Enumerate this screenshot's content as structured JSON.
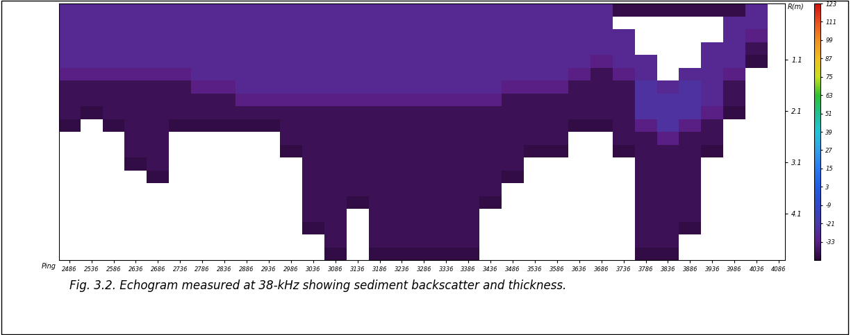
{
  "chart_data": {
    "type": "heatmap",
    "caption": "Fig. 3.2. Echogram measured at 38-kHz showing sediment backscatter and thickness.",
    "x_label": "Ping",
    "y_label": "R(m)",
    "x": [
      2486,
      2536,
      2586,
      2636,
      2686,
      2736,
      2786,
      2836,
      2886,
      2936,
      2986,
      3036,
      3086,
      3136,
      3186,
      3236,
      3286,
      3336,
      3386,
      3436,
      3486,
      3536,
      3586,
      3636,
      3686,
      3736,
      3786,
      3836,
      3886,
      3936,
      3986,
      4036
    ],
    "y": [
      0.125,
      0.375,
      0.625,
      0.875,
      1.125,
      1.375,
      1.625,
      1.875,
      2.125,
      2.375,
      2.625,
      2.875,
      3.125,
      3.375,
      3.625,
      3.875,
      4.125,
      4.375,
      4.625,
      4.875
    ],
    "cells": [
      [
        -29,
        -29,
        -29,
        -29,
        -29,
        -29,
        -29,
        -29,
        -29,
        -29,
        -29,
        -29,
        -29,
        -29,
        -29,
        -29,
        -29,
        -29,
        -29,
        -29,
        -29,
        -29,
        -29,
        -29,
        -29,
        -42,
        -42,
        -42,
        -42,
        -42,
        -42,
        -29
      ],
      [
        -29,
        -29,
        -29,
        -29,
        -29,
        -29,
        -29,
        -29,
        -29,
        -29,
        -29,
        -29,
        -29,
        -29,
        -29,
        -29,
        -29,
        -29,
        -29,
        -29,
        -29,
        -29,
        -29,
        -29,
        -29,
        null,
        null,
        null,
        null,
        null,
        -29,
        -29
      ],
      [
        -29,
        -29,
        -29,
        -29,
        -29,
        -29,
        -29,
        -29,
        -29,
        -29,
        -29,
        -29,
        -29,
        -29,
        -29,
        -29,
        -29,
        -29,
        -29,
        -29,
        -29,
        -29,
        -29,
        -29,
        -29,
        -29,
        null,
        null,
        null,
        null,
        -29,
        -33
      ],
      [
        -29,
        -29,
        -29,
        -29,
        -29,
        -29,
        -29,
        -29,
        -29,
        -29,
        -29,
        -29,
        -29,
        -29,
        -29,
        -29,
        -29,
        -29,
        -29,
        -29,
        -29,
        -29,
        -29,
        -29,
        -29,
        -29,
        null,
        null,
        null,
        -29,
        -29,
        -40
      ],
      [
        -29,
        -29,
        -29,
        -29,
        -29,
        -29,
        -29,
        -29,
        -29,
        -29,
        -29,
        -29,
        -29,
        -29,
        -29,
        -29,
        -29,
        -29,
        -29,
        -29,
        -29,
        -29,
        -29,
        -29,
        -33,
        -29,
        -29,
        null,
        null,
        -29,
        -29,
        -43
      ],
      [
        -33,
        -33,
        -33,
        -33,
        -33,
        -33,
        -29,
        -29,
        -29,
        -29,
        -29,
        -29,
        -29,
        -29,
        -29,
        -29,
        -29,
        -29,
        -29,
        -29,
        -29,
        -29,
        -29,
        -33,
        -40,
        -33,
        -29,
        null,
        -29,
        -29,
        -33,
        null
      ],
      [
        -40,
        -40,
        -40,
        -40,
        -40,
        -40,
        -33,
        -33,
        -29,
        -29,
        -29,
        -29,
        -29,
        -29,
        -29,
        -29,
        -29,
        -29,
        -29,
        -29,
        -33,
        -33,
        -33,
        -40,
        -40,
        -40,
        -24,
        -29,
        -24,
        -29,
        -40,
        null
      ],
      [
        -40,
        -40,
        -40,
        -40,
        -40,
        -40,
        -40,
        -40,
        -33,
        -33,
        -33,
        -33,
        -33,
        -33,
        -33,
        -33,
        -33,
        -33,
        -33,
        -33,
        -40,
        -40,
        -40,
        -40,
        -40,
        -40,
        -24,
        -24,
        -24,
        -29,
        -40,
        null
      ],
      [
        -40,
        -43,
        -40,
        -40,
        -40,
        -40,
        -40,
        -40,
        -40,
        -40,
        -40,
        -40,
        -40,
        -40,
        -40,
        -40,
        -40,
        -40,
        -40,
        -40,
        -40,
        -40,
        -40,
        -40,
        -40,
        -40,
        -24,
        -24,
        -24,
        -33,
        -43,
        null
      ],
      [
        -43,
        null,
        -43,
        -40,
        -40,
        -43,
        -43,
        -43,
        -43,
        -43,
        -40,
        -40,
        -40,
        -40,
        -40,
        -40,
        -40,
        -40,
        -40,
        -40,
        -40,
        -40,
        -40,
        -43,
        -43,
        -40,
        -33,
        -24,
        -33,
        -40,
        null,
        null
      ],
      [
        null,
        null,
        null,
        -40,
        -40,
        null,
        null,
        null,
        null,
        null,
        -40,
        -40,
        -40,
        -40,
        -40,
        -40,
        -40,
        -40,
        -40,
        -40,
        -40,
        -40,
        -40,
        null,
        null,
        -40,
        -40,
        -33,
        -40,
        -40,
        null,
        null
      ],
      [
        null,
        null,
        null,
        -40,
        -40,
        null,
        null,
        null,
        null,
        null,
        -43,
        -40,
        -40,
        -40,
        -40,
        -40,
        -40,
        -40,
        -40,
        -40,
        -40,
        -43,
        -43,
        null,
        null,
        -43,
        -40,
        -40,
        -40,
        -43,
        null,
        null
      ],
      [
        null,
        null,
        null,
        -43,
        -40,
        null,
        null,
        null,
        null,
        null,
        null,
        -40,
        -40,
        -40,
        -40,
        -40,
        -40,
        -40,
        -40,
        -40,
        -40,
        null,
        null,
        null,
        null,
        null,
        -40,
        -40,
        -40,
        null,
        null,
        null
      ],
      [
        null,
        null,
        null,
        null,
        -43,
        null,
        null,
        null,
        null,
        null,
        null,
        -40,
        -40,
        -40,
        -40,
        -40,
        -40,
        -40,
        -40,
        -40,
        -43,
        null,
        null,
        null,
        null,
        null,
        -40,
        -40,
        -40,
        null,
        null,
        null
      ],
      [
        null,
        null,
        null,
        null,
        null,
        null,
        null,
        null,
        null,
        null,
        null,
        -40,
        -40,
        -40,
        -40,
        -40,
        -40,
        -40,
        -40,
        -40,
        null,
        null,
        null,
        null,
        null,
        null,
        -40,
        -40,
        -40,
        null,
        null,
        null
      ],
      [
        null,
        null,
        null,
        null,
        null,
        null,
        null,
        null,
        null,
        null,
        null,
        -40,
        -40,
        -43,
        -40,
        -40,
        -40,
        -40,
        -40,
        -43,
        null,
        null,
        null,
        null,
        null,
        null,
        -40,
        -40,
        -40,
        null,
        null,
        null
      ],
      [
        null,
        null,
        null,
        null,
        null,
        null,
        null,
        null,
        null,
        null,
        null,
        -40,
        -40,
        null,
        -40,
        -40,
        -40,
        -40,
        -40,
        null,
        null,
        null,
        null,
        null,
        null,
        null,
        -40,
        -40,
        -40,
        null,
        null,
        null
      ],
      [
        null,
        null,
        null,
        null,
        null,
        null,
        null,
        null,
        null,
        null,
        null,
        -43,
        -40,
        null,
        -40,
        -40,
        -40,
        -40,
        -40,
        null,
        null,
        null,
        null,
        null,
        null,
        null,
        -40,
        -40,
        -43,
        null,
        null,
        null
      ],
      [
        null,
        null,
        null,
        null,
        null,
        null,
        null,
        null,
        null,
        null,
        null,
        null,
        -40,
        null,
        -40,
        -40,
        -40,
        -40,
        -40,
        null,
        null,
        null,
        null,
        null,
        null,
        null,
        -40,
        -40,
        null,
        null,
        null,
        null
      ],
      [
        null,
        null,
        null,
        null,
        null,
        null,
        null,
        null,
        null,
        null,
        null,
        null,
        -43,
        null,
        -43,
        -43,
        -43,
        -43,
        -43,
        null,
        null,
        null,
        null,
        null,
        null,
        null,
        -43,
        -43,
        null,
        null,
        null,
        null
      ]
    ],
    "xlim": [
      2463,
      4100
    ],
    "xticks": [
      2486,
      2536,
      2586,
      2636,
      2686,
      2736,
      2786,
      2836,
      2886,
      2936,
      2986,
      3036,
      3086,
      3136,
      3186,
      3236,
      3286,
      3336,
      3386,
      3436,
      3486,
      3536,
      3586,
      3636,
      3686,
      3736,
      3786,
      3836,
      3886,
      3936,
      3986,
      4036,
      4086
    ],
    "ylim": [
      5.0,
      0.0
    ],
    "yticks": [
      1.1,
      2.1,
      3.1,
      4.1
    ],
    "colorbar_range": [
      -45,
      123
    ],
    "colorbar_ticks": [
      -33,
      -21,
      -9,
      3,
      15,
      27,
      39,
      51,
      63,
      75,
      87,
      99,
      111,
      123
    ]
  }
}
